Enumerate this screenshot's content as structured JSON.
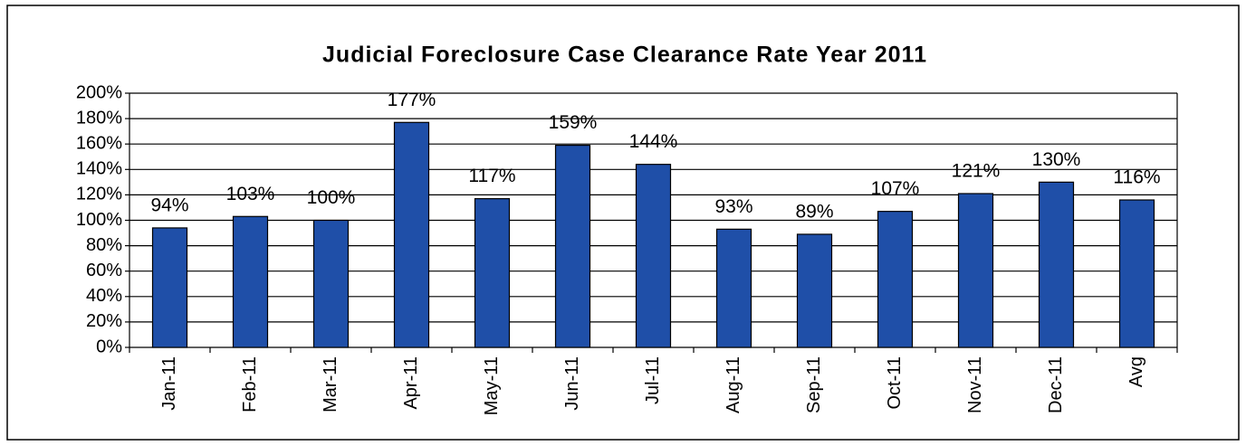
{
  "chart_data": {
    "type": "bar",
    "title": "Judicial Foreclosure Case Clearance Rate Year 2011",
    "categories": [
      "Jan-11",
      "Feb-11",
      "Mar-11",
      "Apr-11",
      "May-11",
      "Jun-11",
      "Jul-11",
      "Aug-11",
      "Sep-11",
      "Oct-11",
      "Nov-11",
      "Dec-11",
      "Avg"
    ],
    "values": [
      94,
      103,
      100,
      177,
      117,
      159,
      144,
      93,
      89,
      107,
      121,
      130,
      116
    ],
    "value_labels": [
      "94%",
      "103%",
      "100%",
      "177%",
      "117%",
      "159%",
      "144%",
      "93%",
      "89%",
      "107%",
      "121%",
      "130%",
      "116%"
    ],
    "color": "#1f4fa8",
    "ylim": [
      0,
      200
    ],
    "yticks": [
      {
        "value": 0,
        "label": "0%"
      },
      {
        "value": 20,
        "label": "20%"
      },
      {
        "value": 40,
        "label": "40%"
      },
      {
        "value": 60,
        "label": "60%"
      },
      {
        "value": 80,
        "label": "80%"
      },
      {
        "value": 100,
        "label": "100%"
      },
      {
        "value": 120,
        "label": "120%"
      },
      {
        "value": 140,
        "label": "140%"
      },
      {
        "value": 160,
        "label": "160%"
      },
      {
        "value": 180,
        "label": "180%"
      },
      {
        "value": 200,
        "label": "200%"
      }
    ],
    "grid": true
  }
}
